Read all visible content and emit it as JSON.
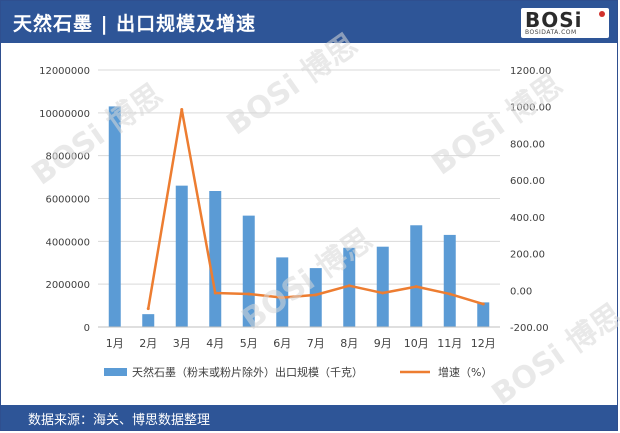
{
  "header": {
    "title": "天然石墨 | 出口规模及增速",
    "logo_text": "BOSi",
    "logo_sub": "BOSIDATA.COM"
  },
  "footer": {
    "source": "数据来源：海关、博思数据整理"
  },
  "watermark": {
    "text": "BOSi 博思"
  },
  "colors": {
    "header_bg": "#2e5597",
    "bar": "#5b9bd5",
    "line": "#ed7d31",
    "grid": "#d9d9d9",
    "axis_text": "#404040"
  },
  "chart_data": {
    "type": "bar",
    "categories": [
      "1月",
      "2月",
      "3月",
      "4月",
      "5月",
      "6月",
      "7月",
      "8月",
      "9月",
      "10月",
      "11月",
      "12月"
    ],
    "series": [
      {
        "name": "天然石墨（粉末或粉片除外）出口规模（千克）",
        "type": "bar",
        "axis": "left",
        "values": [
          10300000,
          600000,
          6600000,
          6350000,
          5200000,
          3250000,
          2750000,
          3700000,
          3750000,
          4750000,
          4300000,
          1150000
        ]
      },
      {
        "name": "增速（%）",
        "type": "line",
        "axis": "right",
        "values": [
          null,
          -100,
          985,
          -15,
          -20,
          -40,
          -25,
          25,
          -15,
          20,
          -20,
          -75
        ]
      }
    ],
    "left_axis": {
      "ylim": [
        0,
        12000000
      ],
      "ticks": [
        "0",
        "2000000",
        "4000000",
        "6000000",
        "8000000",
        "10000000",
        "12000000"
      ],
      "tick_values": [
        0,
        2000000,
        4000000,
        6000000,
        8000000,
        10000000,
        12000000
      ]
    },
    "right_axis": {
      "ylim": [
        -200,
        1200
      ],
      "ticks": [
        "-200.00",
        "0.00",
        "200.00",
        "400.00",
        "600.00",
        "800.00",
        "1000.00",
        "1200.00"
      ],
      "tick_values": [
        -200,
        0,
        200,
        400,
        600,
        800,
        1000,
        1200
      ]
    },
    "legend": {
      "placement": "bottom",
      "bar_label": "天然石墨（粉末或粉片除外）出口规模（千克）",
      "line_label": "增速（%）"
    },
    "grid": true
  }
}
